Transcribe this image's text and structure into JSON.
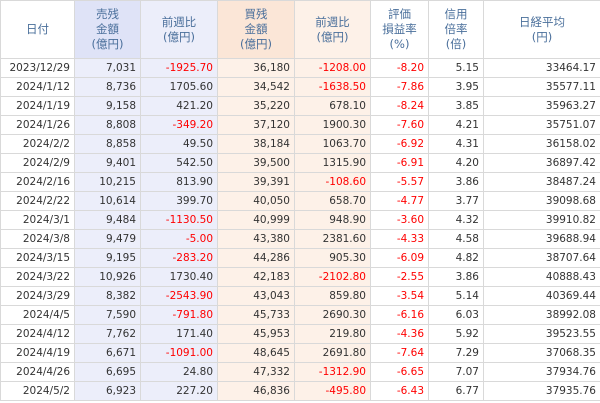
{
  "headers": {
    "date": "日付",
    "sell": [
      "売残",
      "金額",
      "(億円)"
    ],
    "sell_change": [
      "前週比",
      "(億円)"
    ],
    "buy": [
      "買残",
      "金額",
      "(億円)"
    ],
    "buy_change": [
      "前週比",
      "(億円)"
    ],
    "valuation": [
      "評価",
      "損益率",
      "(%)"
    ],
    "credit_ratio": [
      "信用",
      "倍率",
      "(倍)"
    ],
    "nikkei": [
      "日経平均",
      "(円)"
    ]
  },
  "colors": {
    "header_text": "#4a6f9b",
    "negative": "#ff0000",
    "sell_header": "#dfe3f7",
    "buy_header": "#fbe6d7"
  },
  "rows": [
    {
      "date": "2023/12/29",
      "sell": "7,031",
      "sell_change": "-1925.70",
      "buy": "36,180",
      "buy_change": "-1208.00",
      "valuation": "-8.20",
      "ratio": "5.15",
      "nikkei": "33464.17"
    },
    {
      "date": "2024/1/12",
      "sell": "8,736",
      "sell_change": "1705.60",
      "buy": "34,542",
      "buy_change": "-1638.50",
      "valuation": "-7.86",
      "ratio": "3.95",
      "nikkei": "35577.11"
    },
    {
      "date": "2024/1/19",
      "sell": "9,158",
      "sell_change": "421.20",
      "buy": "35,220",
      "buy_change": "678.10",
      "valuation": "-8.24",
      "ratio": "3.85",
      "nikkei": "35963.27"
    },
    {
      "date": "2024/1/26",
      "sell": "8,808",
      "sell_change": "-349.20",
      "buy": "37,120",
      "buy_change": "1900.30",
      "valuation": "-7.60",
      "ratio": "4.21",
      "nikkei": "35751.07"
    },
    {
      "date": "2024/2/2",
      "sell": "8,858",
      "sell_change": "49.50",
      "buy": "38,184",
      "buy_change": "1063.70",
      "valuation": "-6.92",
      "ratio": "4.31",
      "nikkei": "36158.02"
    },
    {
      "date": "2024/2/9",
      "sell": "9,401",
      "sell_change": "542.50",
      "buy": "39,500",
      "buy_change": "1315.90",
      "valuation": "-6.91",
      "ratio": "4.20",
      "nikkei": "36897.42"
    },
    {
      "date": "2024/2/16",
      "sell": "10,215",
      "sell_change": "813.90",
      "buy": "39,391",
      "buy_change": "-108.60",
      "valuation": "-5.57",
      "ratio": "3.86",
      "nikkei": "38487.24"
    },
    {
      "date": "2024/2/22",
      "sell": "10,614",
      "sell_change": "399.70",
      "buy": "40,050",
      "buy_change": "658.70",
      "valuation": "-4.77",
      "ratio": "3.77",
      "nikkei": "39098.68"
    },
    {
      "date": "2024/3/1",
      "sell": "9,484",
      "sell_change": "-1130.50",
      "buy": "40,999",
      "buy_change": "948.90",
      "valuation": "-3.60",
      "ratio": "4.32",
      "nikkei": "39910.82"
    },
    {
      "date": "2024/3/8",
      "sell": "9,479",
      "sell_change": "-5.00",
      "buy": "43,380",
      "buy_change": "2381.60",
      "valuation": "-4.33",
      "ratio": "4.58",
      "nikkei": "39688.94"
    },
    {
      "date": "2024/3/15",
      "sell": "9,195",
      "sell_change": "-283.20",
      "buy": "44,286",
      "buy_change": "905.30",
      "valuation": "-6.09",
      "ratio": "4.82",
      "nikkei": "38707.64"
    },
    {
      "date": "2024/3/22",
      "sell": "10,926",
      "sell_change": "1730.40",
      "buy": "42,183",
      "buy_change": "-2102.80",
      "valuation": "-2.55",
      "ratio": "3.86",
      "nikkei": "40888.43"
    },
    {
      "date": "2024/3/29",
      "sell": "8,382",
      "sell_change": "-2543.90",
      "buy": "43,043",
      "buy_change": "859.80",
      "valuation": "-3.54",
      "ratio": "5.14",
      "nikkei": "40369.44"
    },
    {
      "date": "2024/4/5",
      "sell": "7,590",
      "sell_change": "-791.80",
      "buy": "45,733",
      "buy_change": "2690.30",
      "valuation": "-6.16",
      "ratio": "6.03",
      "nikkei": "38992.08"
    },
    {
      "date": "2024/4/12",
      "sell": "7,762",
      "sell_change": "171.40",
      "buy": "45,953",
      "buy_change": "219.80",
      "valuation": "-4.36",
      "ratio": "5.92",
      "nikkei": "39523.55"
    },
    {
      "date": "2024/4/19",
      "sell": "6,671",
      "sell_change": "-1091.00",
      "buy": "48,645",
      "buy_change": "2691.80",
      "valuation": "-7.64",
      "ratio": "7.29",
      "nikkei": "37068.35"
    },
    {
      "date": "2024/4/26",
      "sell": "6,695",
      "sell_change": "24.80",
      "buy": "47,332",
      "buy_change": "-1312.90",
      "valuation": "-6.65",
      "ratio": "7.07",
      "nikkei": "37934.76"
    },
    {
      "date": "2024/5/2",
      "sell": "6,923",
      "sell_change": "227.20",
      "buy": "46,836",
      "buy_change": "-495.80",
      "valuation": "-6.43",
      "ratio": "6.77",
      "nikkei": "37935.76"
    }
  ]
}
